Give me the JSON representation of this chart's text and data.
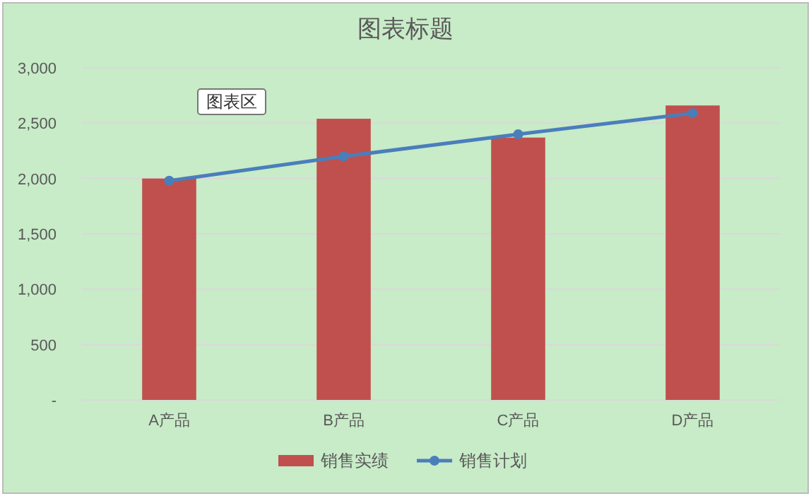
{
  "chart_data": {
    "type": "bar",
    "title": "图表标题",
    "categories": [
      "A产品",
      "B产品",
      "C产品",
      "D产品"
    ],
    "series": [
      {
        "name": "销售实绩",
        "color": "#c0504d",
        "values": [
          2000,
          2540,
          2370,
          2660
        ]
      },
      {
        "name": "销售计划",
        "type": "line",
        "color": "#4a7ebb",
        "values": [
          1980,
          2200,
          2400,
          2590
        ],
        "marker": "circle"
      }
    ],
    "ylim": [
      0,
      3000
    ],
    "yticks": [
      {
        "value": 0,
        "label": "-"
      },
      500,
      {
        "value": 1000,
        "label": "1,000"
      },
      {
        "value": 1500,
        "label": "1,500"
      },
      {
        "value": 2000,
        "label": "2,000"
      },
      {
        "value": 2500,
        "label": "2,500"
      },
      {
        "value": 3000,
        "label": "3,000"
      }
    ],
    "grid": "y",
    "legend": "bottom",
    "annotations": [
      "图表区"
    ]
  }
}
